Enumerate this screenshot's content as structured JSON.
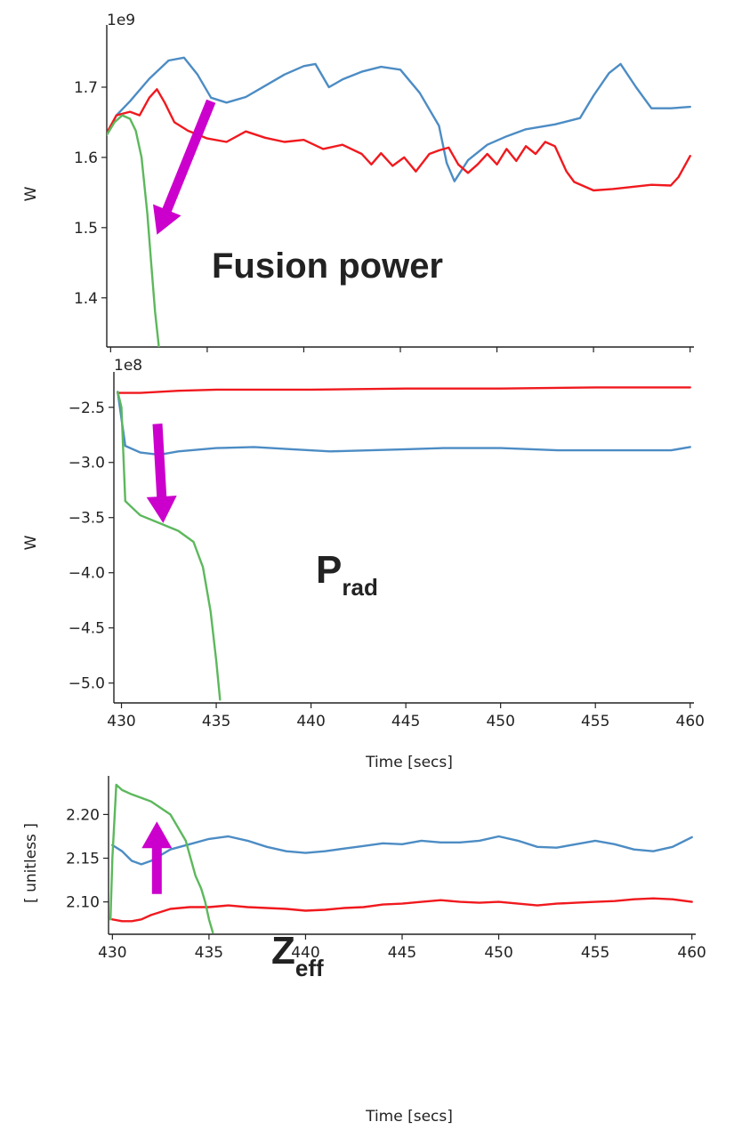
{
  "colors": {
    "blue": "#4c8cc4",
    "red": "#f0191e",
    "green": "#5cb85c",
    "arrow": "#cc00cc",
    "axis": "#222222"
  },
  "chart_data": [
    {
      "type": "line",
      "ylabel": "W",
      "offset_label": "1e9",
      "annotation": "Fusion power",
      "xlim": [
        429.8,
        460.2
      ],
      "ylim": [
        1.33,
        1.776
      ],
      "xticks": [],
      "yticks": [
        {
          "v": 1.4,
          "label": "1.4"
        },
        {
          "v": 1.5,
          "label": "1.5"
        },
        {
          "v": 1.6,
          "label": "1.6"
        },
        {
          "v": 1.7,
          "label": "1.7"
        }
      ],
      "xtick_marks": [
        430,
        435,
        440,
        445,
        450,
        455,
        460
      ],
      "series": [
        {
          "color": "blue",
          "points": [
            [
              429.8,
              1.633
            ],
            [
              430.3,
              1.66
            ],
            [
              431,
              1.68
            ],
            [
              432,
              1.712
            ],
            [
              433,
              1.738
            ],
            [
              433.8,
              1.742
            ],
            [
              434.5,
              1.718
            ],
            [
              435.2,
              1.685
            ],
            [
              436,
              1.678
            ],
            [
              437,
              1.686
            ],
            [
              438,
              1.702
            ],
            [
              439,
              1.718
            ],
            [
              440,
              1.73
            ],
            [
              440.6,
              1.733
            ],
            [
              441.3,
              1.7
            ],
            [
              442,
              1.711
            ],
            [
              443,
              1.722
            ],
            [
              444,
              1.729
            ],
            [
              445,
              1.725
            ],
            [
              446,
              1.692
            ],
            [
              447,
              1.645
            ],
            [
              447.4,
              1.592
            ],
            [
              447.8,
              1.566
            ],
            [
              448.5,
              1.596
            ],
            [
              449.5,
              1.618
            ],
            [
              450.5,
              1.63
            ],
            [
              451.5,
              1.64
            ],
            [
              453,
              1.647
            ],
            [
              454.3,
              1.656
            ],
            [
              455,
              1.688
            ],
            [
              455.8,
              1.72
            ],
            [
              456.4,
              1.733
            ],
            [
              457.2,
              1.7
            ],
            [
              458,
              1.67
            ],
            [
              459,
              1.67
            ],
            [
              460,
              1.672
            ]
          ]
        },
        {
          "color": "red",
          "points": [
            [
              429.8,
              1.635
            ],
            [
              430.3,
              1.66
            ],
            [
              431,
              1.665
            ],
            [
              431.5,
              1.66
            ],
            [
              432,
              1.685
            ],
            [
              432.4,
              1.697
            ],
            [
              432.8,
              1.678
            ],
            [
              433.3,
              1.65
            ],
            [
              434,
              1.638
            ],
            [
              435,
              1.627
            ],
            [
              436,
              1.622
            ],
            [
              437,
              1.637
            ],
            [
              438,
              1.628
            ],
            [
              439,
              1.622
            ],
            [
              440,
              1.625
            ],
            [
              441,
              1.612
            ],
            [
              442,
              1.618
            ],
            [
              443,
              1.605
            ],
            [
              443.5,
              1.59
            ],
            [
              444,
              1.606
            ],
            [
              444.6,
              1.588
            ],
            [
              445.2,
              1.6
            ],
            [
              445.8,
              1.58
            ],
            [
              446.5,
              1.605
            ],
            [
              447,
              1.61
            ],
            [
              447.5,
              1.614
            ],
            [
              448,
              1.59
            ],
            [
              448.5,
              1.578
            ],
            [
              449,
              1.59
            ],
            [
              449.5,
              1.605
            ],
            [
              450,
              1.59
            ],
            [
              450.5,
              1.612
            ],
            [
              451,
              1.595
            ],
            [
              451.5,
              1.616
            ],
            [
              452,
              1.605
            ],
            [
              452.5,
              1.622
            ],
            [
              453,
              1.616
            ],
            [
              453.6,
              1.58
            ],
            [
              454,
              1.565
            ],
            [
              455,
              1.553
            ],
            [
              456,
              1.555
            ],
            [
              457,
              1.558
            ],
            [
              458,
              1.561
            ],
            [
              459,
              1.56
            ],
            [
              459.4,
              1.572
            ],
            [
              460,
              1.602
            ]
          ]
        },
        {
          "color": "green",
          "points": [
            [
              429.8,
              1.632
            ],
            [
              430.2,
              1.65
            ],
            [
              430.6,
              1.66
            ],
            [
              431,
              1.655
            ],
            [
              431.3,
              1.638
            ],
            [
              431.6,
              1.6
            ],
            [
              431.9,
              1.52
            ],
            [
              432.1,
              1.45
            ],
            [
              432.3,
              1.38
            ],
            [
              432.5,
              1.33
            ]
          ]
        }
      ],
      "arrow": {
        "from": [
          435.2,
          1.68
        ],
        "to": [
          432.4,
          1.49
        ]
      }
    },
    {
      "type": "line",
      "ylabel": "W",
      "offset_label": "1e8",
      "annotation": "P",
      "annotation_sub": "rad",
      "xlim": [
        429.6,
        460.2
      ],
      "ylim": [
        -5.18,
        -2.26
      ],
      "xlabel": "Time [secs]",
      "xticks": [
        {
          "v": 430,
          "label": "430"
        },
        {
          "v": 435,
          "label": "435"
        },
        {
          "v": 440,
          "label": "440"
        },
        {
          "v": 445,
          "label": "445"
        },
        {
          "v": 450,
          "label": "450"
        },
        {
          "v": 455,
          "label": "455"
        },
        {
          "v": 460,
          "label": "460"
        }
      ],
      "yticks": [
        {
          "v": -5.0,
          "label": "−5.0"
        },
        {
          "v": -4.5,
          "label": "−4.5"
        },
        {
          "v": -4.0,
          "label": "−4.0"
        },
        {
          "v": -3.5,
          "label": "−3.5"
        },
        {
          "v": -3.0,
          "label": "−3.0"
        },
        {
          "v": -2.5,
          "label": "−2.5"
        }
      ],
      "series": [
        {
          "color": "blue",
          "points": [
            [
              429.8,
              -2.36
            ],
            [
              430.2,
              -2.85
            ],
            [
              431,
              -2.91
            ],
            [
              432,
              -2.93
            ],
            [
              433,
              -2.9
            ],
            [
              435,
              -2.87
            ],
            [
              437,
              -2.86
            ],
            [
              439,
              -2.88
            ],
            [
              441,
              -2.9
            ],
            [
              445,
              -2.88
            ],
            [
              447,
              -2.87
            ],
            [
              450,
              -2.87
            ],
            [
              453,
              -2.89
            ],
            [
              457,
              -2.89
            ],
            [
              459,
              -2.89
            ],
            [
              460,
              -2.86
            ]
          ]
        },
        {
          "color": "red",
          "points": [
            [
              429.8,
              -2.37
            ],
            [
              431,
              -2.37
            ],
            [
              433,
              -2.35
            ],
            [
              435,
              -2.34
            ],
            [
              440,
              -2.34
            ],
            [
              445,
              -2.33
            ],
            [
              450,
              -2.33
            ],
            [
              455,
              -2.32
            ],
            [
              460,
              -2.32
            ]
          ]
        },
        {
          "color": "green",
          "points": [
            [
              429.8,
              -2.36
            ],
            [
              430,
              -2.5
            ],
            [
              430.2,
              -3.35
            ],
            [
              430.5,
              -3.4
            ],
            [
              431,
              -3.48
            ],
            [
              432,
              -3.55
            ],
            [
              433,
              -3.62
            ],
            [
              433.8,
              -3.72
            ],
            [
              434.3,
              -3.95
            ],
            [
              434.7,
              -4.35
            ],
            [
              435,
              -4.8
            ],
            [
              435.2,
              -5.15
            ]
          ]
        }
      ],
      "arrow": {
        "from": [
          431.9,
          -2.65
        ],
        "to": [
          432.2,
          -3.55
        ]
      }
    },
    {
      "type": "line",
      "ylabel": "[ unitless ]",
      "annotation": "Z",
      "annotation_sub": "eff",
      "xlim": [
        429.8,
        460.2
      ],
      "ylim": [
        2.063,
        2.234
      ],
      "xlabel": "Time [secs]",
      "xticks": [
        {
          "v": 430,
          "label": "430"
        },
        {
          "v": 435,
          "label": "435"
        },
        {
          "v": 440,
          "label": "440"
        },
        {
          "v": 445,
          "label": "445"
        },
        {
          "v": 450,
          "label": "450"
        },
        {
          "v": 455,
          "label": "455"
        },
        {
          "v": 460,
          "label": "460"
        }
      ],
      "yticks": [
        {
          "v": 2.1,
          "label": "2.10"
        },
        {
          "v": 2.15,
          "label": "2.15"
        },
        {
          "v": 2.2,
          "label": "2.20"
        }
      ],
      "series": [
        {
          "color": "blue",
          "points": [
            [
              430,
              2.165
            ],
            [
              430.5,
              2.158
            ],
            [
              431,
              2.147
            ],
            [
              431.5,
              2.143
            ],
            [
              432,
              2.147
            ],
            [
              433,
              2.16
            ],
            [
              434,
              2.166
            ],
            [
              435,
              2.172
            ],
            [
              436,
              2.175
            ],
            [
              437,
              2.17
            ],
            [
              438,
              2.163
            ],
            [
              439,
              2.158
            ],
            [
              440,
              2.156
            ],
            [
              441,
              2.158
            ],
            [
              442,
              2.161
            ],
            [
              443,
              2.164
            ],
            [
              444,
              2.167
            ],
            [
              445,
              2.166
            ],
            [
              446,
              2.17
            ],
            [
              447,
              2.168
            ],
            [
              448,
              2.168
            ],
            [
              449,
              2.17
            ],
            [
              450,
              2.175
            ],
            [
              451,
              2.17
            ],
            [
              452,
              2.163
            ],
            [
              453,
              2.162
            ],
            [
              454,
              2.166
            ],
            [
              455,
              2.17
            ],
            [
              456,
              2.166
            ],
            [
              457,
              2.16
            ],
            [
              458,
              2.158
            ],
            [
              459,
              2.163
            ],
            [
              460,
              2.174
            ]
          ]
        },
        {
          "color": "red",
          "points": [
            [
              430,
              2.08
            ],
            [
              430.5,
              2.078
            ],
            [
              431,
              2.078
            ],
            [
              431.5,
              2.08
            ],
            [
              432,
              2.085
            ],
            [
              433,
              2.092
            ],
            [
              434,
              2.094
            ],
            [
              435,
              2.094
            ],
            [
              436,
              2.096
            ],
            [
              437,
              2.094
            ],
            [
              438,
              2.093
            ],
            [
              439,
              2.092
            ],
            [
              440,
              2.09
            ],
            [
              441,
              2.091
            ],
            [
              442,
              2.093
            ],
            [
              443,
              2.094
            ],
            [
              444,
              2.097
            ],
            [
              445,
              2.098
            ],
            [
              446,
              2.1
            ],
            [
              447,
              2.102
            ],
            [
              448,
              2.1
            ],
            [
              449,
              2.099
            ],
            [
              450,
              2.1
            ],
            [
              451,
              2.098
            ],
            [
              452,
              2.096
            ],
            [
              453,
              2.098
            ],
            [
              454,
              2.099
            ],
            [
              455,
              2.1
            ],
            [
              456,
              2.101
            ],
            [
              457,
              2.103
            ],
            [
              458,
              2.104
            ],
            [
              459,
              2.103
            ],
            [
              460,
              2.1
            ]
          ]
        },
        {
          "color": "green",
          "points": [
            [
              429.9,
              2.08
            ],
            [
              430,
              2.15
            ],
            [
              430.2,
              2.234
            ],
            [
              430.5,
              2.228
            ],
            [
              431,
              2.223
            ],
            [
              432,
              2.215
            ],
            [
              433,
              2.2
            ],
            [
              433.8,
              2.17
            ],
            [
              434.3,
              2.13
            ],
            [
              434.6,
              2.115
            ],
            [
              434.8,
              2.1
            ],
            [
              435,
              2.08
            ],
            [
              435.2,
              2.065
            ]
          ]
        }
      ],
      "arrow": {
        "from": [
          432.3,
          2.109
        ],
        "to": [
          432.3,
          2.192
        ]
      }
    }
  ]
}
